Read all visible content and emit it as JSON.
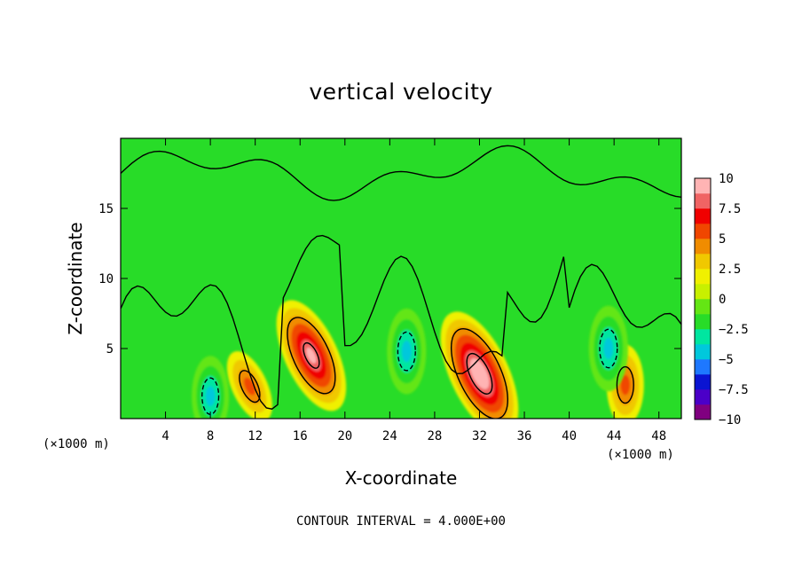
{
  "chart_data": {
    "type": "heatmap",
    "title": "vertical velocity",
    "xlabel": "X-coordinate",
    "ylabel": "Z-coordinate",
    "x_unit": "(×1000 m)",
    "y_unit": "(×1000 m)",
    "xlim": [
      0,
      50
    ],
    "ylim": [
      0,
      20
    ],
    "x_ticks": [
      4,
      8,
      12,
      16,
      20,
      24,
      28,
      32,
      36,
      40,
      44,
      48
    ],
    "y_ticks": [
      5,
      10,
      15
    ],
    "colorbar": {
      "ticks": [
        10,
        7.5,
        5,
        2.5,
        0,
        -2.5,
        -5,
        -7.5,
        -10
      ],
      "range": [
        -10,
        10
      ],
      "colors": [
        "#800080",
        "#4b00c8",
        "#0a14d2",
        "#1e78ff",
        "#00c8dc",
        "#00e6a0",
        "#28dc28",
        "#64e614",
        "#c8f000",
        "#f0f000",
        "#f0c800",
        "#f08c00",
        "#f04600",
        "#f00000",
        "#f06464",
        "#ffb4b4"
      ]
    },
    "footer": "CONTOUR INTERVAL = 4.000E+00",
    "features": [
      {
        "x": 17,
        "z": 4.5,
        "w": 9,
        "label": "updraft core"
      },
      {
        "x": 32,
        "z": 3.2,
        "w": 10.5,
        "label": "updraft core"
      },
      {
        "x": 11.5,
        "z": 2.3,
        "w": 4.5,
        "label": "updraft"
      },
      {
        "x": 45,
        "z": 2.4,
        "w": 5,
        "label": "updraft"
      },
      {
        "x": 25.5,
        "z": 4.8,
        "w": -5.5,
        "label": "downdraft"
      },
      {
        "x": 8,
        "z": 1.6,
        "w": -5,
        "label": "downdraft"
      },
      {
        "x": 43.5,
        "z": 5.0,
        "w": -5.5,
        "label": "downdraft"
      }
    ]
  }
}
